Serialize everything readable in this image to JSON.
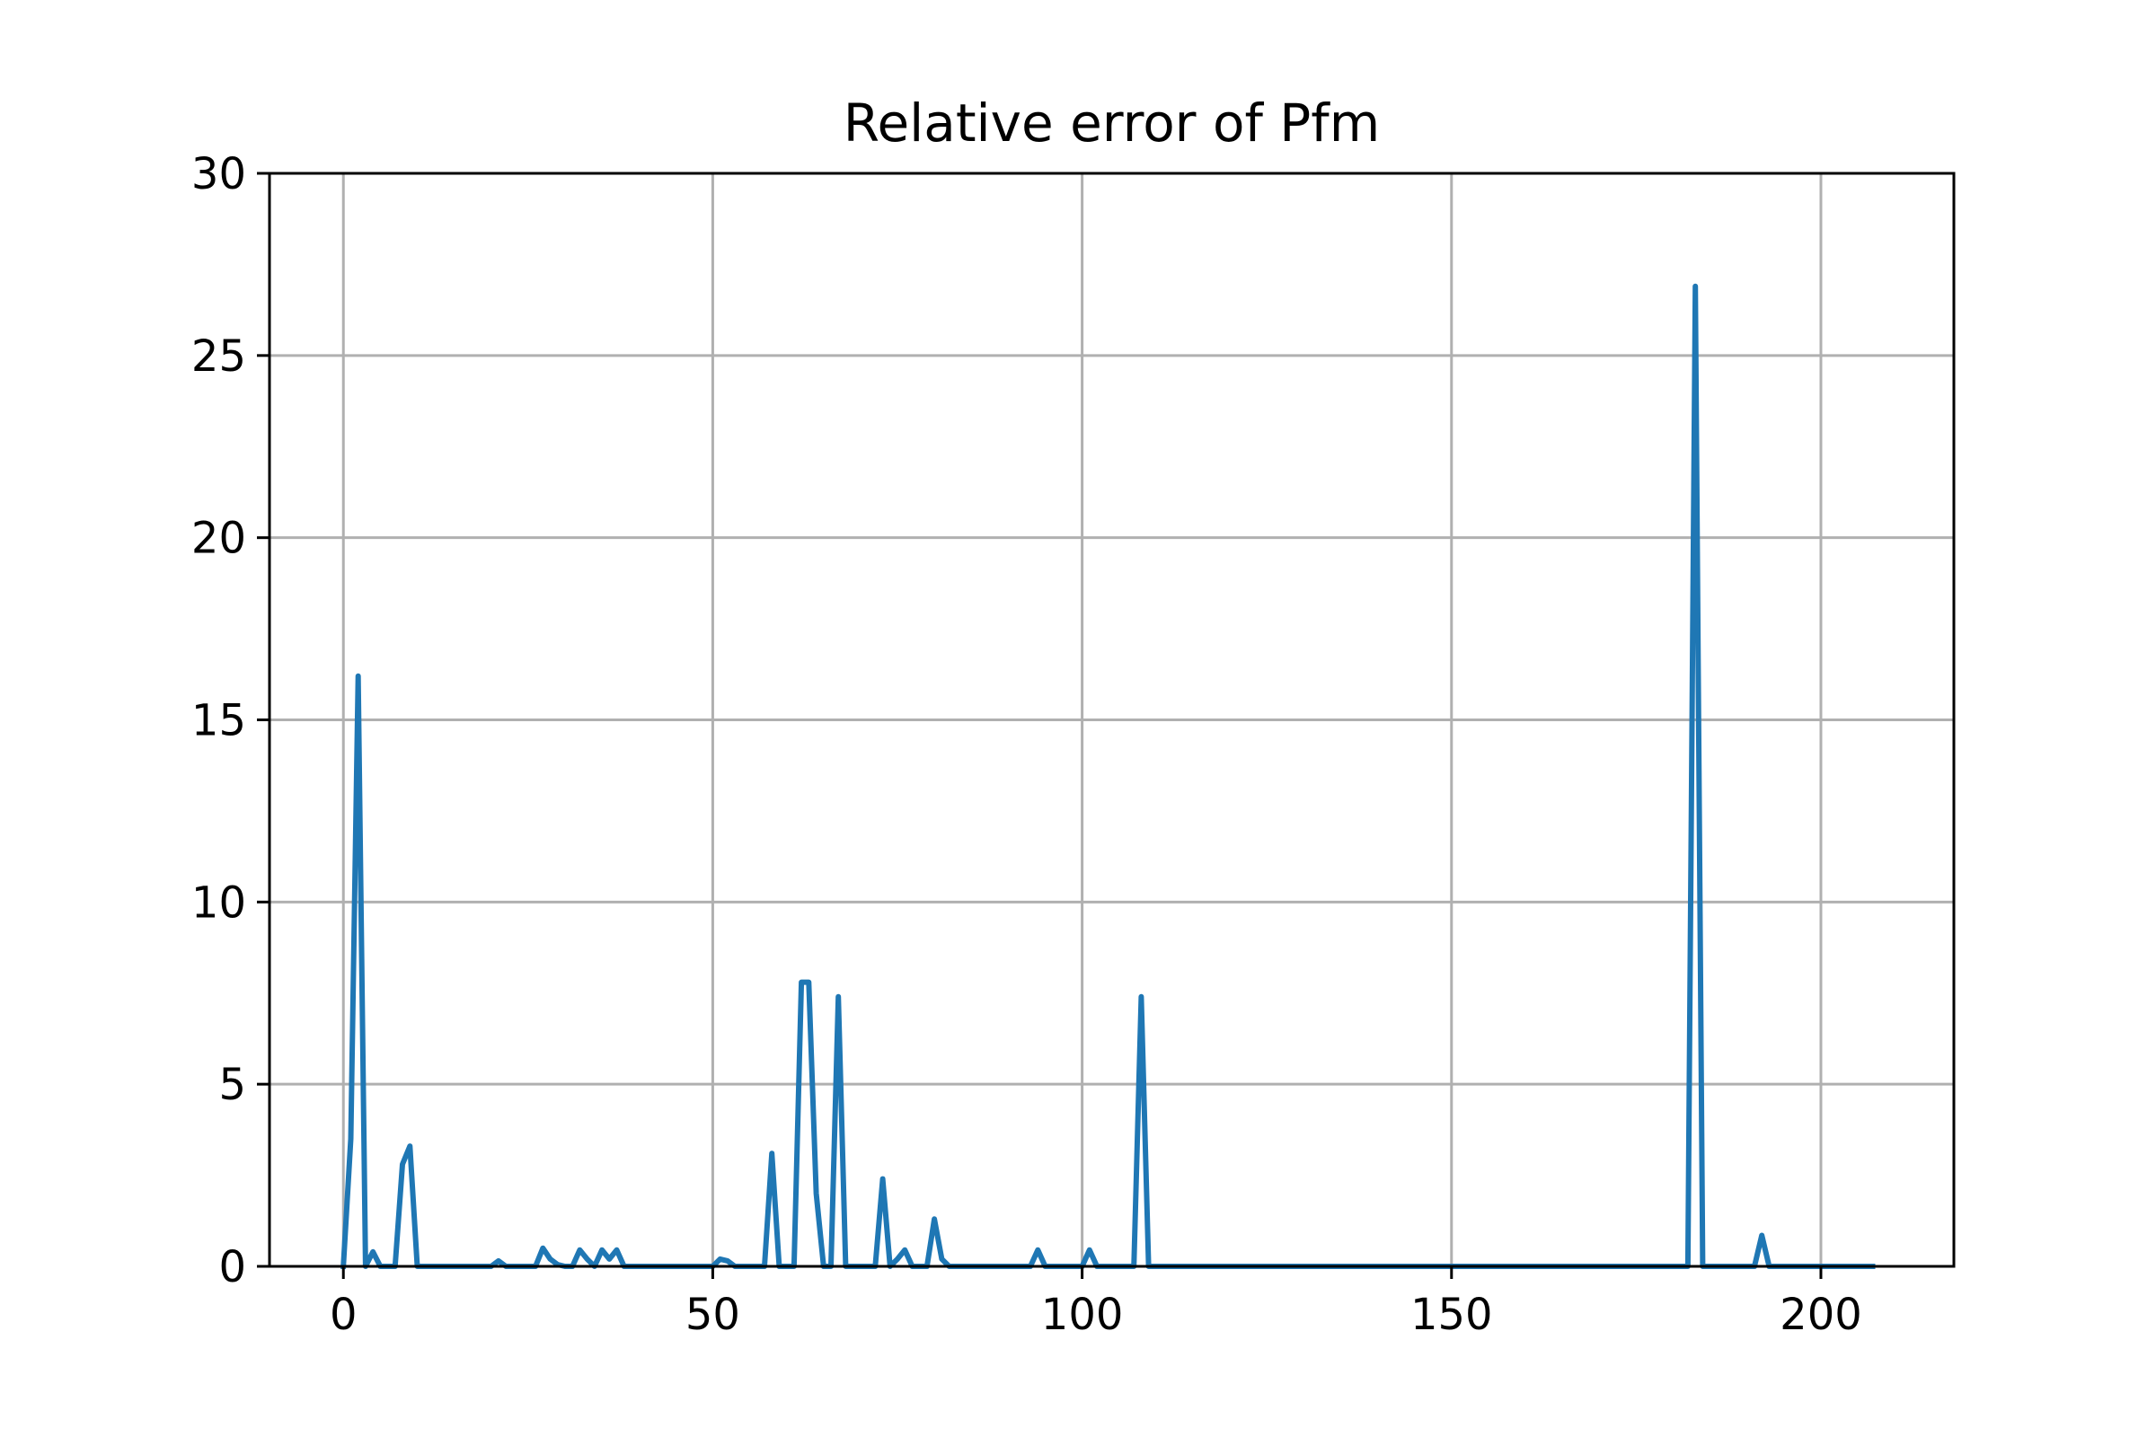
{
  "chart_data": {
    "type": "line",
    "title": "Relative error of Pfm",
    "xlabel": "",
    "ylabel": "",
    "xlim": [
      -10,
      218
    ],
    "ylim": [
      0,
      30
    ],
    "x_ticks": [
      0,
      50,
      100,
      150,
      200
    ],
    "x_tick_labels": [
      "0",
      "50",
      "100",
      "150",
      "200"
    ],
    "y_ticks": [
      0,
      5,
      10,
      15,
      20,
      25,
      30
    ],
    "y_tick_labels": [
      "0",
      "5",
      "10",
      "15",
      "20",
      "25",
      "30"
    ],
    "grid": true,
    "line_color": "#1f77b4",
    "series": [
      {
        "points": [
          [
            0,
            0
          ],
          [
            1,
            3.5
          ],
          [
            2,
            16.2
          ],
          [
            3,
            0
          ],
          [
            4,
            0.4
          ],
          [
            5,
            0
          ],
          [
            6,
            0
          ],
          [
            7,
            0
          ],
          [
            8,
            2.8
          ],
          [
            9,
            3.3
          ],
          [
            10,
            0
          ],
          [
            20,
            0
          ],
          [
            21,
            0.15
          ],
          [
            22,
            0
          ],
          [
            26,
            0
          ],
          [
            27,
            0.5
          ],
          [
            28,
            0.2
          ],
          [
            29,
            0.05
          ],
          [
            30,
            0
          ],
          [
            31,
            0
          ],
          [
            32,
            0.45
          ],
          [
            33,
            0.2
          ],
          [
            34,
            0
          ],
          [
            35,
            0.45
          ],
          [
            36,
            0.2
          ],
          [
            37,
            0.45
          ],
          [
            38,
            0
          ],
          [
            50,
            0
          ],
          [
            51,
            0.2
          ],
          [
            52,
            0.15
          ],
          [
            53,
            0
          ],
          [
            57,
            0
          ],
          [
            58,
            3.1
          ],
          [
            59,
            0
          ],
          [
            61,
            0
          ],
          [
            62,
            7.8
          ],
          [
            63,
            7.8
          ],
          [
            64,
            2.0
          ],
          [
            65,
            0
          ],
          [
            66,
            0
          ],
          [
            67,
            7.4
          ],
          [
            68,
            0
          ],
          [
            72,
            0
          ],
          [
            73,
            2.4
          ],
          [
            74,
            0
          ],
          [
            75,
            0.2
          ],
          [
            76,
            0.45
          ],
          [
            77,
            0
          ],
          [
            79,
            0
          ],
          [
            80,
            1.3
          ],
          [
            81,
            0.2
          ],
          [
            82,
            0
          ],
          [
            93,
            0
          ],
          [
            94,
            0.45
          ],
          [
            95,
            0
          ],
          [
            100,
            0
          ],
          [
            101,
            0.45
          ],
          [
            102,
            0
          ],
          [
            107,
            0
          ],
          [
            108,
            7.4
          ],
          [
            109,
            0
          ],
          [
            182,
            0
          ],
          [
            183,
            26.9
          ],
          [
            184,
            0
          ],
          [
            191,
            0
          ],
          [
            192,
            0.85
          ],
          [
            193,
            0
          ],
          [
            207,
            0
          ]
        ]
      }
    ]
  }
}
